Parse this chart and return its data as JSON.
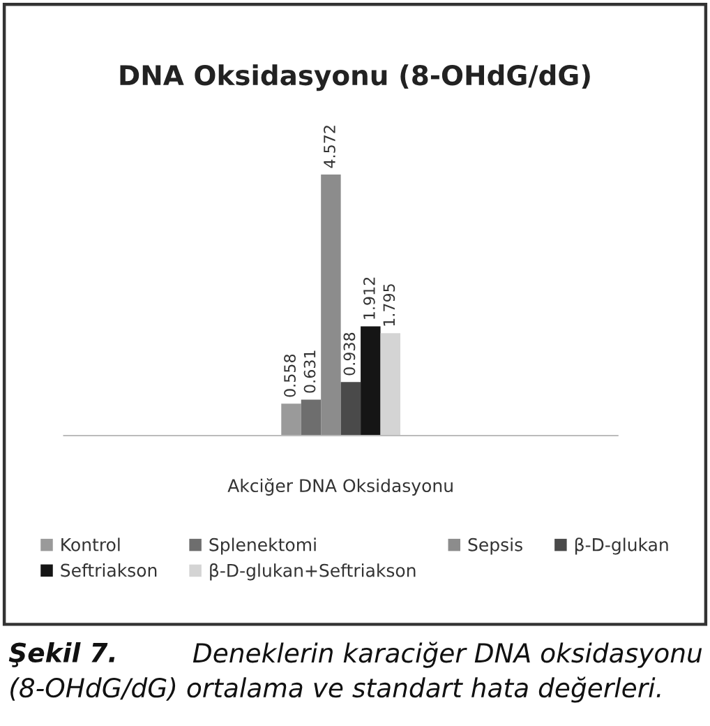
{
  "chart_data": {
    "type": "bar",
    "title": "DNA Oksidasyonu (8-OHdG/dG)",
    "categories": [
      "Akciğer DNA Oksidasyonu"
    ],
    "series": [
      {
        "name": "Kontrol",
        "color": "#9a9a9a",
        "values": [
          0.558
        ]
      },
      {
        "name": "Splenektomi",
        "color": "#6e6e6e",
        "values": [
          0.631
        ]
      },
      {
        "name": "Sepsis",
        "color": "#8c8c8c",
        "values": [
          4.572
        ]
      },
      {
        "name": "β-D-glukan",
        "color": "#4a4a4a",
        "values": [
          0.938
        ]
      },
      {
        "name": "Seftriakson",
        "color": "#151515",
        "values": [
          1.912
        ]
      },
      {
        "name": "β-D-glukan+Seftriakson",
        "color": "#d4d4d4",
        "values": [
          1.795
        ]
      }
    ],
    "data_labels": true,
    "legend": "bottom",
    "tick_labels": "x",
    "annotations": [
      "Şekil 7.",
      "Deneklerin karaciğer DNA oksidasyonu",
      "(8-OHdG/dG) ortalama ve standart hata değerleri."
    ]
  }
}
